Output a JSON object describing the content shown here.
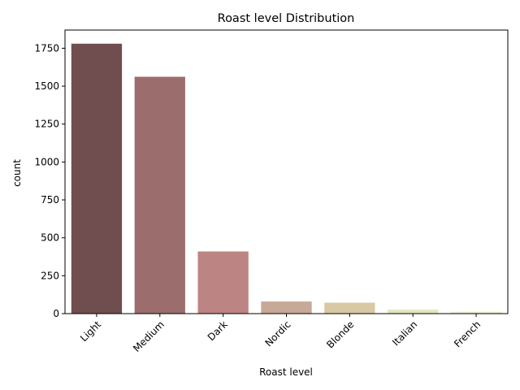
{
  "chart_data": {
    "type": "bar",
    "title": "Roast level Distribution",
    "xlabel": "Roast level",
    "ylabel": "count",
    "categories": [
      "Light",
      "Medium",
      "Dark",
      "Nordic",
      "Blonde",
      "Italian",
      "French"
    ],
    "values": [
      1780,
      1562,
      410,
      80,
      72,
      26,
      13
    ],
    "colors": [
      "#704e4f",
      "#9c6d6d",
      "#bc8482",
      "#c8a896",
      "#d8c8a4",
      "#e4e6c0",
      "#e9eecf"
    ],
    "ylim": [
      0,
      1870
    ],
    "yticks": [
      0,
      250,
      500,
      750,
      1000,
      1250,
      1500,
      1750
    ],
    "grid": false,
    "legend": "none",
    "xtick_rotation": 45
  }
}
